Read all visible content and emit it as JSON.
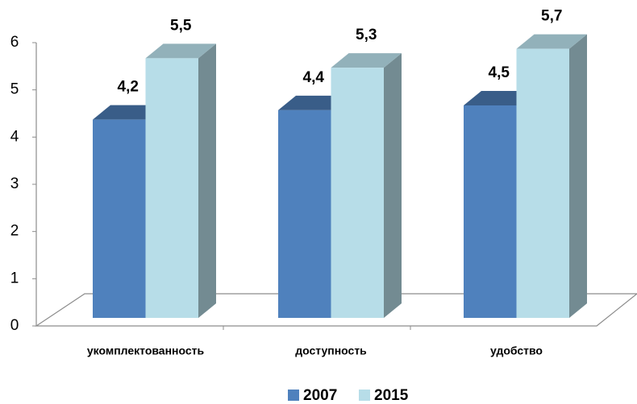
{
  "chart_data": {
    "type": "bar3d",
    "categories": [
      "укомплектованность",
      "доступность",
      "удобство"
    ],
    "series": [
      {
        "name": "2007",
        "color": "#4f81bd",
        "values": [
          4.2,
          4.4,
          4.5
        ],
        "value_labels": [
          "4,2",
          "4,4",
          "4,5"
        ]
      },
      {
        "name": "2015",
        "color": "#b7dde8",
        "values": [
          5.5,
          5.3,
          5.7
        ],
        "value_labels": [
          "5,5",
          "5,3",
          "5,7"
        ]
      }
    ],
    "ylim": [
      0,
      6
    ],
    "yticks": [
      0,
      1,
      2,
      3,
      4,
      5,
      6
    ],
    "legend": "bottom"
  }
}
